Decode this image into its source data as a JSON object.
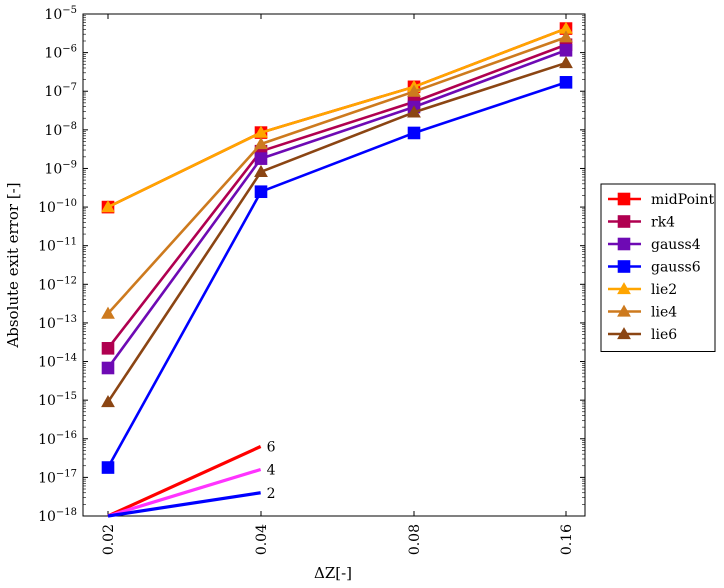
{
  "chart_data": {
    "type": "line",
    "xlabel": "ΔZ[-]",
    "ylabel": "Absolute exit error [-]",
    "x": [
      0.02,
      0.04,
      0.08,
      0.16
    ],
    "xtick_labels": [
      "0.02",
      "0.04",
      "0.08",
      "0.16"
    ],
    "x_scale": "log",
    "y_scale": "log",
    "ylim": [
      1e-18,
      1e-05
    ],
    "ytick_labels": [
      {
        "mant": "10",
        "exp": "−5"
      },
      {
        "mant": "10",
        "exp": "−6"
      },
      {
        "mant": "10",
        "exp": "−7"
      },
      {
        "mant": "10",
        "exp": "−8"
      },
      {
        "mant": "10",
        "exp": "−9"
      },
      {
        "mant": "10",
        "exp": "−10"
      },
      {
        "mant": "10",
        "exp": "−11"
      },
      {
        "mant": "10",
        "exp": "−12"
      },
      {
        "mant": "10",
        "exp": "−13"
      },
      {
        "mant": "10",
        "exp": "−14"
      },
      {
        "mant": "10",
        "exp": "−15"
      },
      {
        "mant": "10",
        "exp": "−16"
      },
      {
        "mant": "10",
        "exp": "−17"
      },
      {
        "mant": "10",
        "exp": "−18"
      }
    ],
    "legend_position": "right",
    "series": [
      {
        "name": "midPoint",
        "color": "#ff0000",
        "marker": "square",
        "values": [
          1e-10,
          8.5e-09,
          1.3e-07,
          4.2e-06
        ]
      },
      {
        "name": "rk4",
        "color": "#b00050",
        "marker": "square",
        "values": [
          2.2e-14,
          2.8e-09,
          5.3e-08,
          1.6e-06
        ]
      },
      {
        "name": "gauss4",
        "color": "#6e0ab4",
        "marker": "square",
        "values": [
          6.8e-15,
          1.8e-09,
          3.9e-08,
          1.15e-06
        ]
      },
      {
        "name": "gauss6",
        "color": "#0000ff",
        "marker": "square",
        "values": [
          1.8e-17,
          2.5e-10,
          8.3e-09,
          1.7e-07
        ]
      },
      {
        "name": "lie2",
        "color": "#ffa500",
        "marker": "triangle",
        "values": [
          1e-10,
          8.5e-09,
          1.3e-07,
          4.2e-06
        ]
      },
      {
        "name": "lie4",
        "color": "#cd7a1e",
        "marker": "triangle",
        "values": [
          1.75e-13,
          4.3e-09,
          9.8e-08,
          2.5e-06
        ]
      },
      {
        "name": "lie6",
        "color": "#8b4513",
        "marker": "triangle",
        "values": [
          9e-16,
          8.2e-10,
          2.85e-08,
          5.4e-07
        ]
      }
    ],
    "annotations": [
      {
        "label": "6",
        "color": "#ff0000",
        "x": [
          0.02,
          0.04
        ],
        "y": [
          1e-18,
          6.3e-17
        ]
      },
      {
        "label": "4",
        "color": "#ff33ff",
        "x": [
          0.02,
          0.04
        ],
        "y": [
          1e-18,
          1.6e-17
        ]
      },
      {
        "label": "2",
        "color": "#0000ff",
        "x": [
          0.02,
          0.04
        ],
        "y": [
          1e-18,
          4e-18
        ]
      }
    ]
  }
}
